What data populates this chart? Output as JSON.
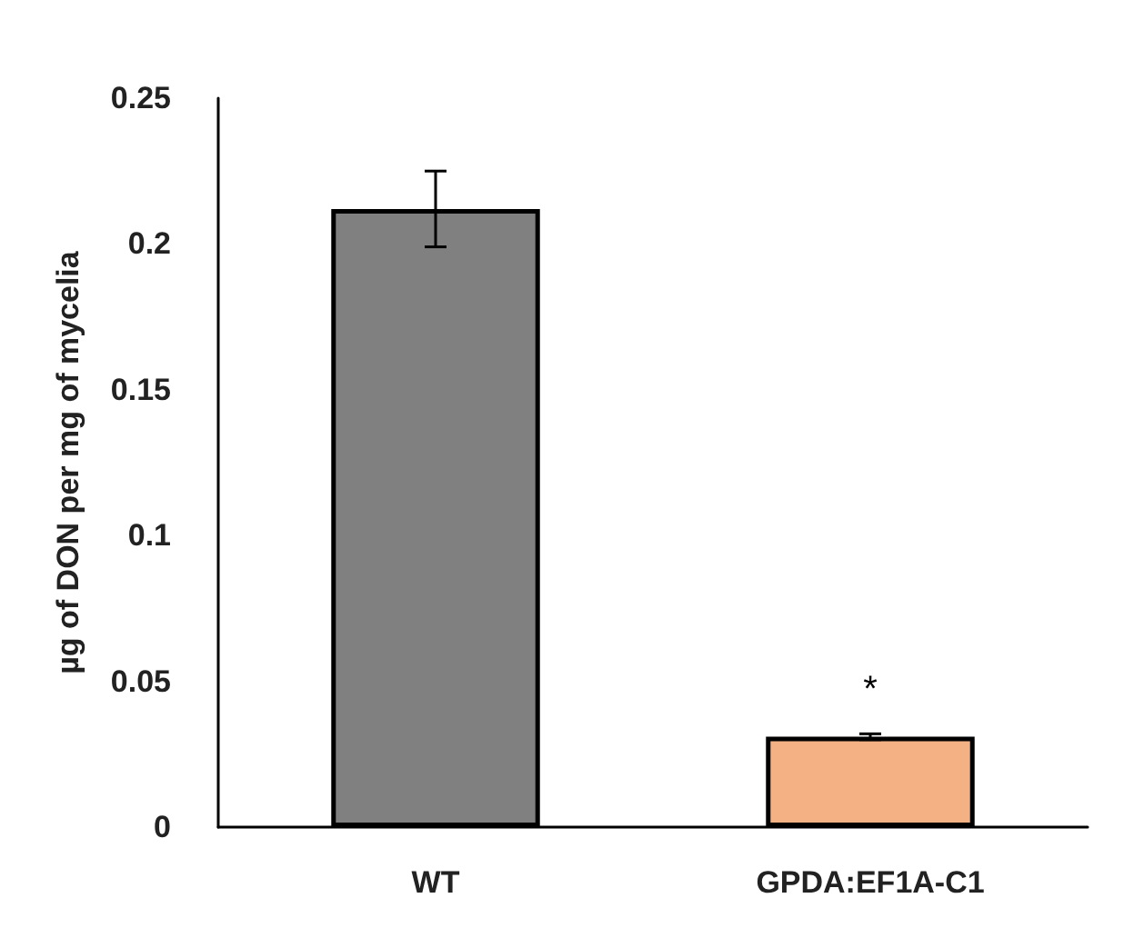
{
  "chart_data": {
    "type": "bar",
    "ylabel": "µg of DON per mg of mycelia",
    "categories": [
      "WT",
      "GPDA:EF1A-C1"
    ],
    "values": [
      0.212,
      0.031
    ],
    "colors": [
      "#808080",
      "#f4b183"
    ],
    "errors": [
      0.013,
      0.001
    ],
    "ylim": [
      0,
      0.25
    ],
    "yticks": [
      0,
      0.05,
      0.1,
      0.15,
      0.2,
      0.25
    ],
    "grid": false,
    "annotations": [
      "*"
    ]
  }
}
